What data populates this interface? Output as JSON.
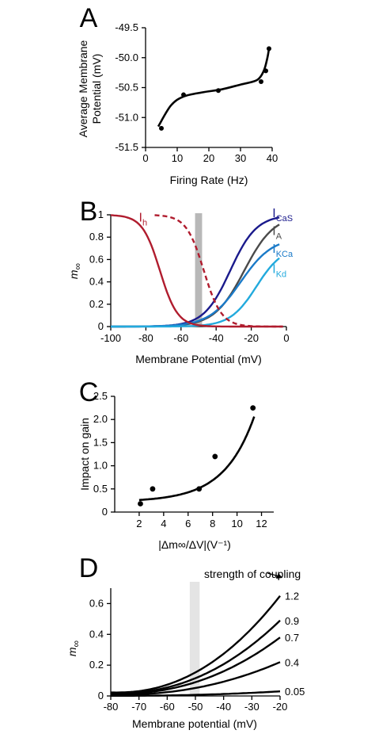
{
  "chart_data": [
    {
      "panel": "A",
      "type": "scatter",
      "xlabel": "Firing Rate (Hz)",
      "ylabel": "Average Membrane Potential (mV)",
      "xlim": [
        0,
        40
      ],
      "ylim": [
        -51.5,
        -49.5
      ],
      "xticks": [
        "0",
        "10",
        "20",
        "30",
        "40"
      ],
      "yticks": [
        "-49.5",
        "-50.0",
        "-50.5",
        "-51.0",
        "-51.5"
      ],
      "ytick_values": [
        -49.5,
        -50.0,
        -50.5,
        -51.0,
        -51.5
      ],
      "points": {
        "x": [
          5,
          12,
          23,
          36.5,
          38,
          39
        ],
        "y": [
          -51.18,
          -50.62,
          -50.55,
          -50.4,
          -50.22,
          -49.85
        ]
      },
      "fit": {
        "x": [
          4,
          8,
          12,
          18,
          24,
          30,
          34,
          36,
          37.5,
          38.5,
          39
        ],
        "y": [
          -51.15,
          -50.8,
          -50.65,
          -50.58,
          -50.53,
          -50.45,
          -50.4,
          -50.34,
          -50.2,
          -50.0,
          -49.85
        ]
      }
    },
    {
      "panel": "B",
      "type": "line",
      "xlabel": "Membrane Potential (mV)",
      "ylabel": "m∞",
      "xlim": [
        -100,
        0
      ],
      "ylim": [
        0,
        1
      ],
      "xticks": [
        "-100",
        "-80",
        "-60",
        "-40",
        "-20",
        "0"
      ],
      "yticks": [
        "0",
        "0.2",
        "0.4",
        "0.6",
        "0.8",
        "1"
      ],
      "ytick_values": [
        0,
        0.2,
        0.4,
        0.6,
        0.8,
        1
      ],
      "shaded_band": [
        -52,
        -48
      ],
      "series": [
        {
          "name": "I",
          "sub": "CaS",
          "color": "#1a1a8c",
          "dashed": false,
          "label_at": [
            -8,
            0.98
          ]
        },
        {
          "name": "I",
          "sub": "A",
          "color": "#4a4a4a",
          "dashed": false,
          "label_at": [
            -8,
            0.82
          ]
        },
        {
          "name": "I",
          "sub": "KCa",
          "color": "#1a7ac8",
          "dashed": false,
          "label_at": [
            -8,
            0.66
          ]
        },
        {
          "name": "I",
          "sub": "Kd",
          "color": "#22aadd",
          "dashed": false,
          "label_at": [
            -8,
            0.48
          ]
        },
        {
          "name": "I",
          "sub": "h",
          "color": "#b01c2e",
          "dashed": false,
          "label_at": [
            -84,
            0.94
          ]
        },
        {
          "name": "",
          "sub": "",
          "color": "#b01c2e",
          "dashed": true
        }
      ]
    },
    {
      "panel": "C",
      "type": "scatter",
      "xlabel": "|Δm∞/ΔV|(V⁻¹)",
      "ylabel": "Impact on gain",
      "xlim": [
        0,
        13
      ],
      "ylim": [
        0,
        2.5
      ],
      "xticks": [
        "2",
        "4",
        "6",
        "8",
        "10",
        "12"
      ],
      "xtick_values": [
        2,
        4,
        6,
        8,
        10,
        12
      ],
      "yticks": [
        "0",
        "0.5",
        "1.0",
        "1.5",
        "2.0",
        "2.5"
      ],
      "ytick_values": [
        0,
        0.5,
        1.0,
        1.5,
        2.0,
        2.5
      ],
      "points": {
        "x": [
          2.1,
          3.1,
          6.9,
          8.2,
          11.3
        ],
        "y": [
          0.18,
          0.5,
          0.5,
          1.2,
          2.25
        ]
      }
    },
    {
      "panel": "D",
      "type": "line",
      "xlabel": "Membrane potential (mV)",
      "ylabel": "m∞",
      "xlim": [
        -80,
        -20
      ],
      "ylim": [
        0,
        0.7
      ],
      "xticks": [
        "-80",
        "-70",
        "-60",
        "-50",
        "-40",
        "-30",
        "-20"
      ],
      "yticks": [
        "0",
        "0.2",
        "0.4",
        "0.6"
      ],
      "ytick_values": [
        0,
        0.2,
        0.4,
        0.6
      ],
      "shaded_band": [
        -52,
        -48.5
      ],
      "annotation": "strength of coupling",
      "series": [
        {
          "name": "1.2",
          "end_value": 0.65
        },
        {
          "name": "0.9",
          "end_value": 0.49
        },
        {
          "name": "0.7",
          "end_value": 0.38
        },
        {
          "name": "0.4",
          "end_value": 0.22
        },
        {
          "name": "0.05",
          "end_value": 0.03
        }
      ]
    }
  ]
}
